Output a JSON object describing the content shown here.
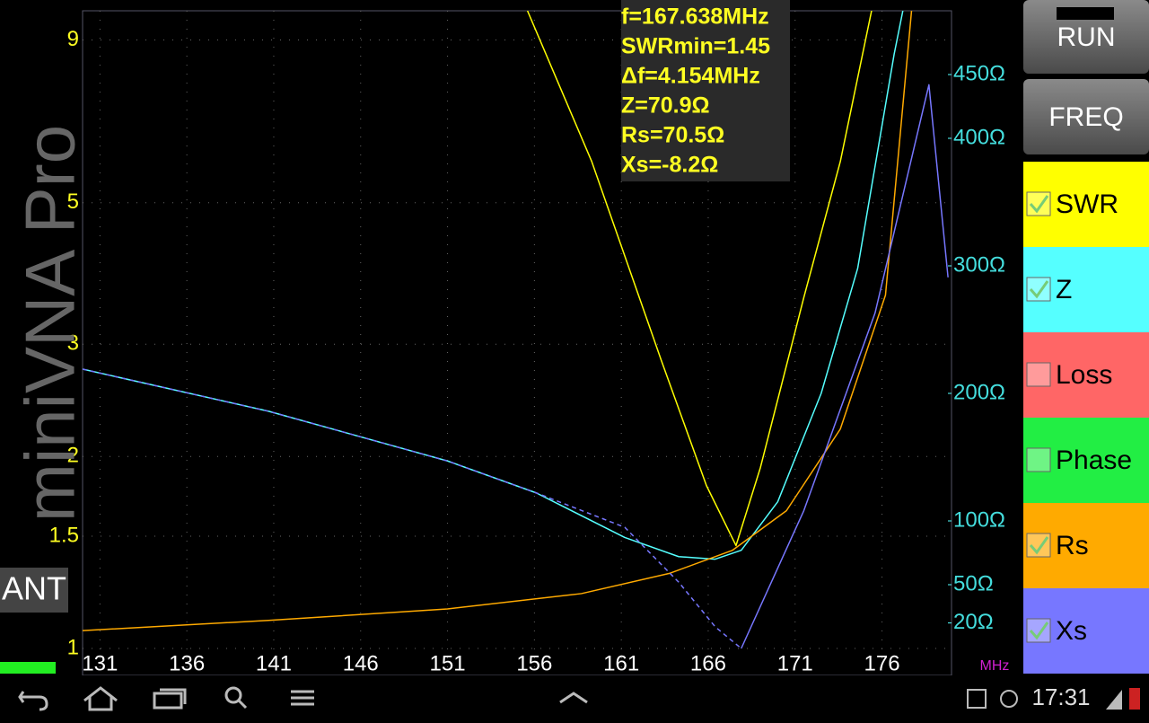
{
  "brand": "miniVNA Pro",
  "port": "ANT",
  "marker_info": [
    "f=167.638MHz",
    "SWRmin=1.45",
    "Δf=4.154MHz",
    "Z=70.9Ω",
    "Rs=70.5Ω",
    "Xs=-8.2Ω"
  ],
  "buttons": [
    "RUN",
    "FREQ"
  ],
  "traces": [
    {
      "label": "SWR",
      "color": "#ffff00",
      "checked": true
    },
    {
      "label": "Z",
      "color": "#55ffff",
      "checked": true
    },
    {
      "label": "Loss",
      "color": "#ff6666",
      "checked": false
    },
    {
      "label": "Phase",
      "color": "#22ee44",
      "checked": false
    },
    {
      "label": "Rs",
      "color": "#ffaa00",
      "checked": true
    },
    {
      "label": "Xs",
      "color": "#7777ff",
      "checked": true
    }
  ],
  "status": {
    "time": "17:31"
  },
  "chart_data": {
    "type": "line",
    "x_unit": "MHz",
    "xlim": [
      130,
      180
    ],
    "xticks": [
      131,
      136,
      141,
      146,
      151,
      156,
      161,
      166,
      171,
      176
    ],
    "ylim": [
      1,
      10
    ],
    "y_scale": "log",
    "yticks": [
      1,
      1.5,
      2,
      3,
      5,
      9
    ],
    "y2lim": [
      0,
      500
    ],
    "y2ticks": [
      {
        "value": 20,
        "label": "20Ω"
      },
      {
        "value": 50,
        "label": "50Ω"
      },
      {
        "value": 100,
        "label": "100Ω"
      },
      {
        "value": 200,
        "label": "200Ω"
      },
      {
        "value": 300,
        "label": "300Ω"
      },
      {
        "value": 400,
        "label": "400Ω"
      },
      {
        "value": 450,
        "label": "450Ω"
      }
    ],
    "grid": true,
    "series": [
      {
        "name": "SWR",
        "color": "#ffff00",
        "x": [
          155.6,
          159.3,
          163.3,
          165.9,
          167.6,
          169,
          171.5,
          173.6,
          175.4
        ],
        "values": [
          10,
          5.8,
          2.83,
          1.8,
          1.45,
          1.92,
          3.55,
          5.8,
          10
        ]
      },
      {
        "name": "Z",
        "color": "#55ffff",
        "axis": "y2",
        "x": [
          130,
          140.7,
          151,
          156.1,
          161.2,
          164.3,
          166.4,
          167.9,
          170,
          172.5,
          174.6,
          176.7,
          177.2
        ],
        "values": [
          219,
          186,
          147,
          122,
          87,
          72,
          70,
          77,
          115,
          200,
          298,
          466,
          500
        ]
      },
      {
        "name": "Rs",
        "color": "#ffaa00",
        "axis": "y2",
        "x": [
          130,
          140.7,
          151,
          158.7,
          163.8,
          167.4,
          170.5,
          173.6,
          176.2,
          177.7
        ],
        "values": [
          14,
          22,
          31,
          43,
          59,
          77,
          108,
          172,
          277,
          500
        ]
      },
      {
        "name": "Xs",
        "color": "#7777ff",
        "axis": "y2",
        "x": [
          130,
          140.7,
          151,
          156.1,
          161.2,
          164.3,
          166.4,
          167.9,
          171.5,
          175.6,
          178.7,
          179.8
        ],
        "values": [
          219,
          186,
          147,
          122,
          95,
          52,
          17,
          0,
          108,
          263,
          442,
          291
        ],
        "dash": [
          true,
          true,
          true,
          true,
          true,
          true,
          true,
          true,
          false,
          false,
          false,
          false
        ]
      }
    ]
  }
}
